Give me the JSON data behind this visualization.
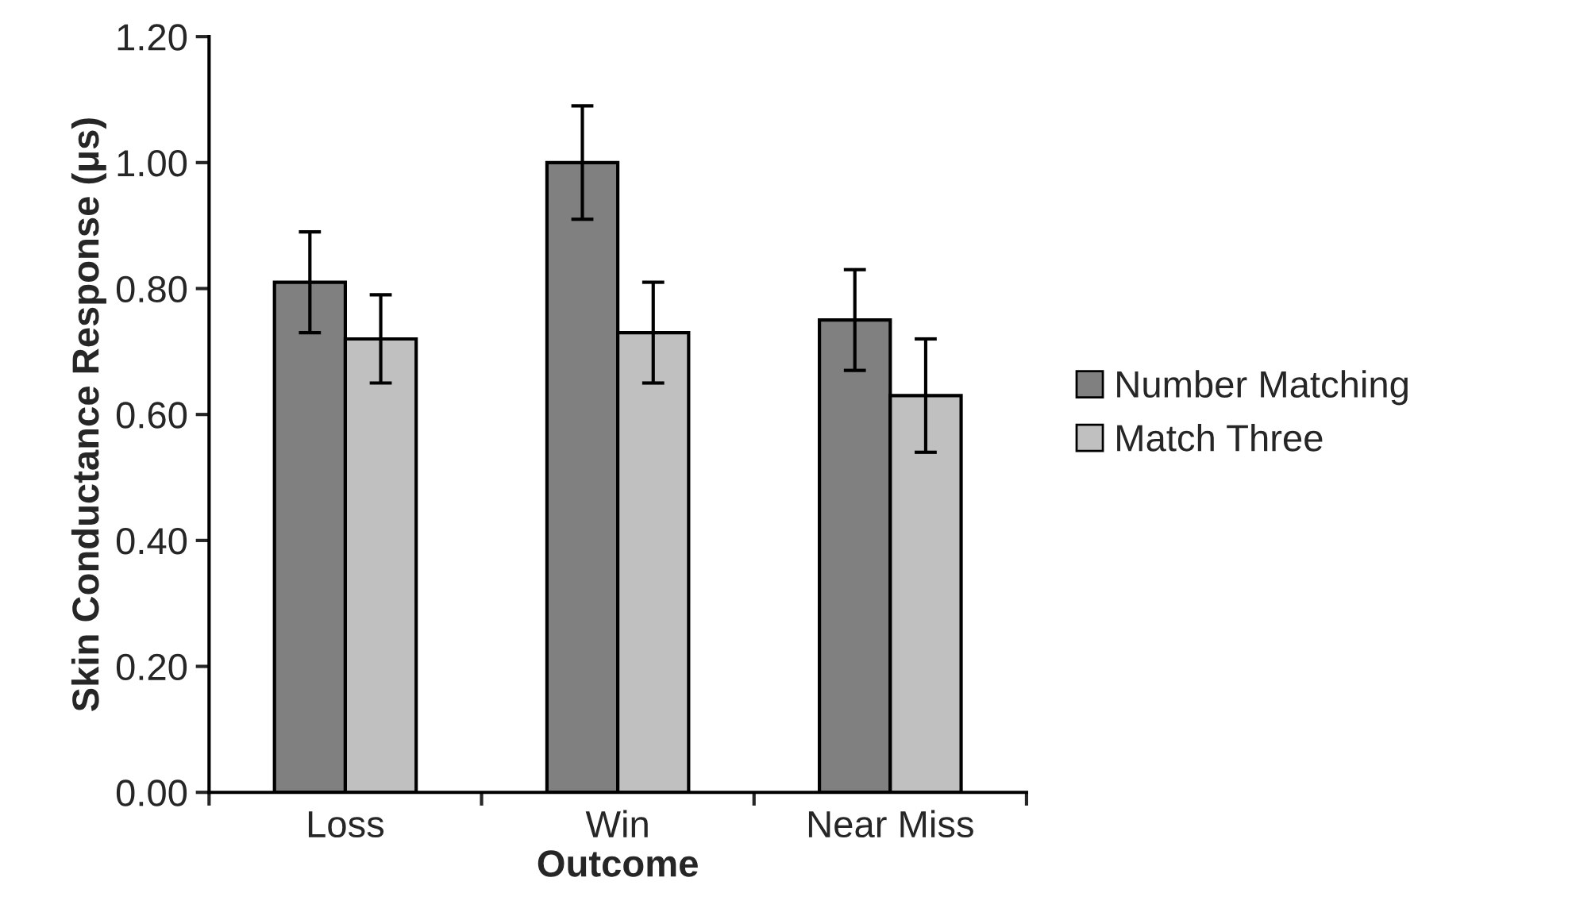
{
  "chart_data": {
    "type": "bar",
    "xlabel": "Outcome",
    "ylabel": "Skin Conductance Response (μs)",
    "categories": [
      "Loss",
      "Win",
      "Near Miss"
    ],
    "series": [
      {
        "name": "Number Matching",
        "color": "#808080",
        "values": [
          0.81,
          1.0,
          0.75
        ],
        "errors": [
          0.08,
          0.09,
          0.08
        ]
      },
      {
        "name": "Match Three",
        "color": "#c0c0c0",
        "values": [
          0.72,
          0.73,
          0.63
        ],
        "errors": [
          0.07,
          0.08,
          0.09
        ]
      }
    ],
    "ylim": [
      0,
      1.2
    ],
    "yticks": [
      {
        "value": 0,
        "label": "0.00"
      },
      {
        "value": 0.2,
        "label": "0.20"
      },
      {
        "value": 0.4,
        "label": "0.40"
      },
      {
        "value": 0.6,
        "label": "0.60"
      },
      {
        "value": 0.8,
        "label": "0.80"
      },
      {
        "value": 1.0,
        "label": "1.00"
      },
      {
        "value": 1.2,
        "label": "1.20"
      }
    ],
    "grid": false,
    "legend": "right"
  }
}
